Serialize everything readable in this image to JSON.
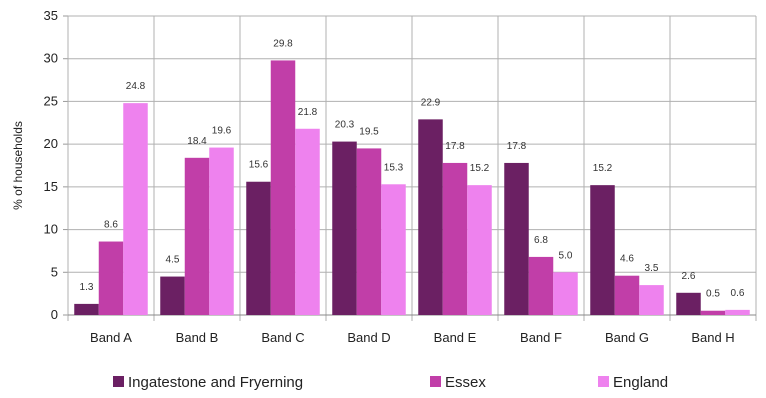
{
  "chart_data": {
    "type": "bar",
    "title": "",
    "xlabel": "",
    "ylabel": "% of households",
    "ylim": [
      0,
      35
    ],
    "yticks": [
      0,
      5,
      10,
      15,
      20,
      25,
      30,
      35
    ],
    "grid": true,
    "legend_position": "bottom",
    "categories": [
      "Band A",
      "Band B",
      "Band C",
      "Band D",
      "Band E",
      "Band F",
      "Band G",
      "Band H"
    ],
    "series": [
      {
        "name": "Ingatestone and Fryerning",
        "color": "#6b2063",
        "values": [
          1.3,
          4.5,
          15.6,
          20.3,
          22.9,
          17.8,
          15.2,
          2.6
        ],
        "labels": [
          "1.3",
          "4.5",
          "15.6",
          "20.3",
          "22.9",
          "17.8",
          "15.2",
          "2.6"
        ]
      },
      {
        "name": "Essex",
        "color": "#c13ea8",
        "values": [
          8.6,
          18.4,
          29.8,
          19.5,
          17.8,
          6.8,
          4.6,
          0.5
        ],
        "labels": [
          "8.6",
          "18.4",
          "29.8",
          "19.5",
          "17.8",
          "6.8",
          "4.6",
          "0.5"
        ]
      },
      {
        "name": "England",
        "color": "#ee82ee",
        "values": [
          24.8,
          19.6,
          21.8,
          15.3,
          15.2,
          5.0,
          3.5,
          0.6
        ],
        "labels": [
          "24.8",
          "19.6",
          "21.8",
          "15.3",
          "15.2",
          "5.0",
          "3.5",
          "0.6"
        ]
      }
    ]
  }
}
